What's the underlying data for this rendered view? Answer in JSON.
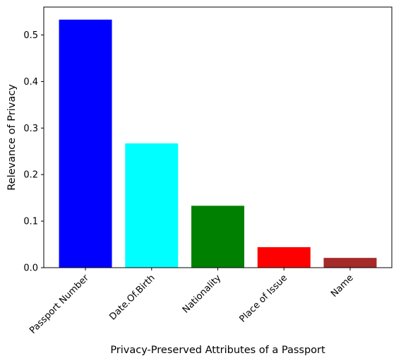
{
  "chart_data": {
    "type": "bar",
    "title": "",
    "xlabel": "Privacy-Preserved Attributes of a Passport",
    "ylabel": "Relevance of Privacy",
    "categories": [
      "Passport Number",
      "Date.Of.Birth",
      "Nationality",
      "Place of Issue",
      "Name"
    ],
    "values": [
      0.533,
      0.267,
      0.133,
      0.044,
      0.021
    ],
    "colors": [
      "#0000ff",
      "#00ffff",
      "#008000",
      "#ff0000",
      "#a52a2a"
    ],
    "yticks": [
      "0.0",
      "0.1",
      "0.2",
      "0.3",
      "0.4",
      "0.5"
    ],
    "ylim": [
      0,
      0.56
    ],
    "grid": false,
    "legend": "none"
  }
}
